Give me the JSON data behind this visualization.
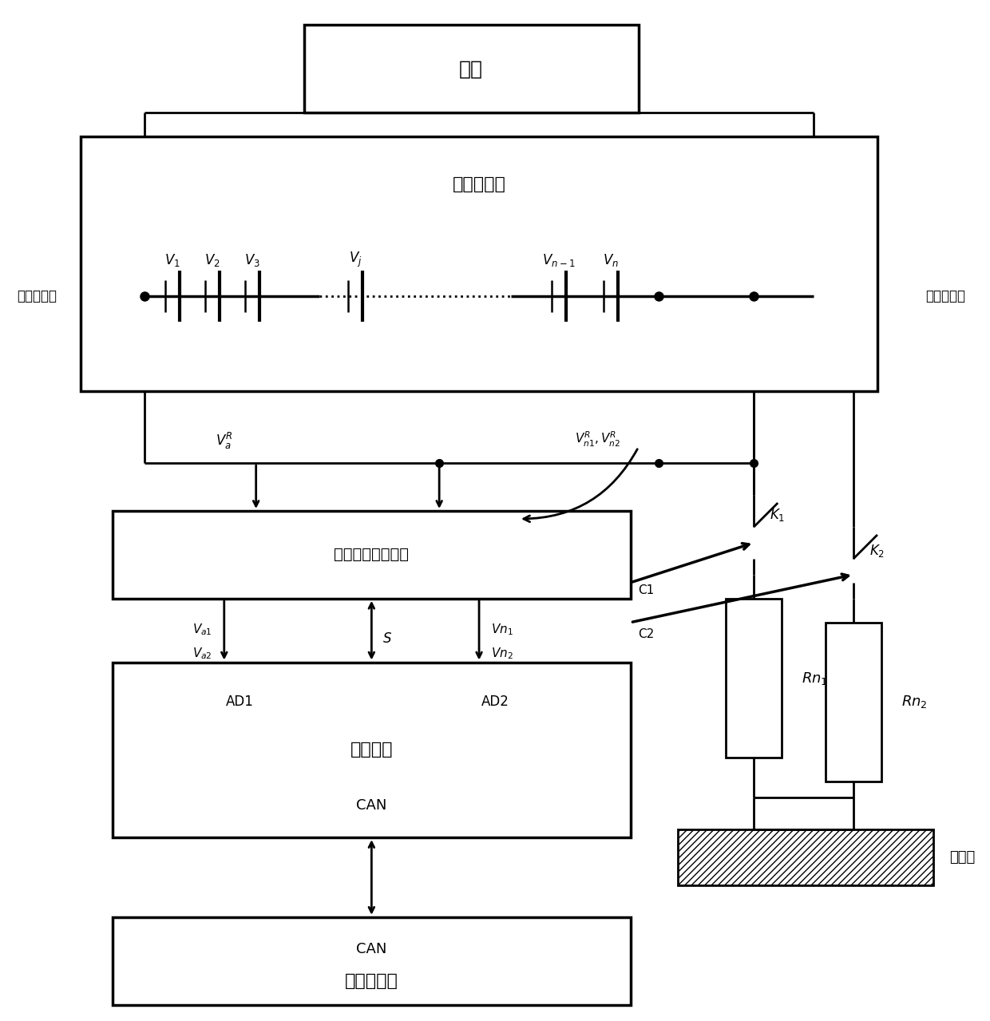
{
  "bg_color": "#ffffff",
  "line_color": "#000000",
  "lw": 2.0,
  "blw": 2.5,
  "figsize": [
    12.4,
    12.79
  ],
  "dpi": 100,
  "labels": {
    "fuzai": "负载",
    "chuanlian": "串联电池组",
    "dianya_caiyang": "电压同步采样电路",
    "kongzhi": "控制单元",
    "can_label": "CAN",
    "zhengche": "整车控制器",
    "can_label2": "CAN",
    "dianchi_zhengz": "电池组总正",
    "dianchi_fuz": "电池组总负",
    "cheshendi": "车身地",
    "ad1": "AD1",
    "ad2": "AD2"
  }
}
